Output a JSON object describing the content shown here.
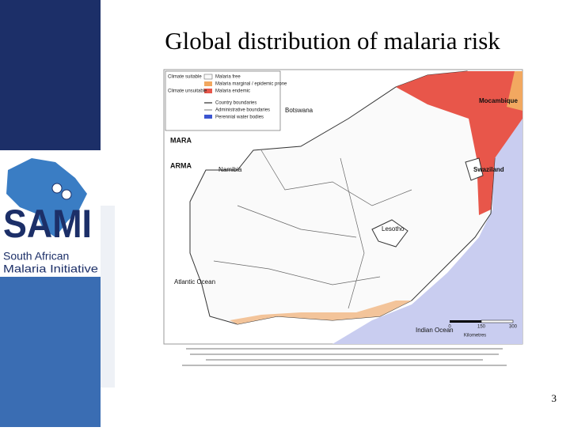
{
  "header": {
    "title": "Global distribution of malaria risk"
  },
  "logo": {
    "name": "SAMI",
    "subtitle": [
      "South African",
      "Malaria Initiative"
    ]
  },
  "map": {
    "legend": [
      "Climate suitable",
      "Climate unsuitable",
      "Malaria free",
      "Malaria marginal / epidemic prone",
      "Malaria endemic",
      "Country boundaries",
      "Administrative boundaries",
      "Perennial water bodies"
    ],
    "badges": [
      "MARA",
      "ARMA"
    ],
    "labels": [
      "Botswana",
      "Namibia",
      "Mocambique",
      "Swaziland",
      "Lesotho",
      "Atlantic Ocean",
      "Indian Ocean"
    ],
    "scale": {
      "ticks": [
        "0",
        "150",
        "300"
      ],
      "unit": "Kilometres"
    }
  },
  "footer": {
    "page_number": "3"
  }
}
